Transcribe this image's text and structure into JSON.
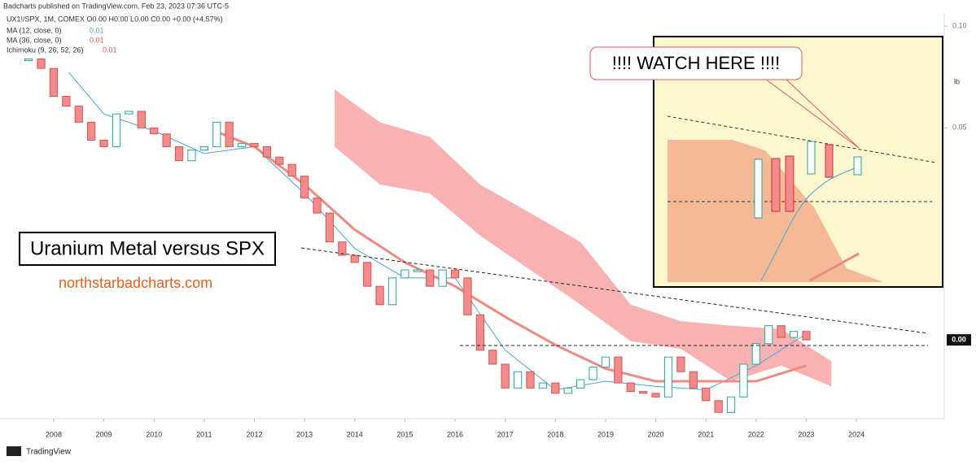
{
  "header": "Badcharts published on TradingView.com, Feb 23, 2023 07:36 UTC-5",
  "symbol_line": "UX1!/SPX, 1M, COMEX O0.00 H0.00 L0.00 C0.00 +0.00 (+4.57%)",
  "footer": "TradingView",
  "chart_data": {
    "type": "candlestick",
    "title": "Uranium Metal versus SPX",
    "subtitle": "northstarbadcharts.com",
    "annotation": "!!!! WATCH HERE !!!!",
    "scale_label": "lb",
    "last_label": "0.00",
    "log_scale": true,
    "x": [
      2007.5,
      2007.75,
      2008,
      2008.25,
      2008.5,
      2008.75,
      2009,
      2009.25,
      2009.5,
      2009.75,
      2010,
      2010.25,
      2010.5,
      2010.75,
      2011,
      2011.25,
      2011.5,
      2011.75,
      2012,
      2012.25,
      2012.5,
      2012.75,
      2013,
      2013.25,
      2013.5,
      2013.75,
      2014,
      2014.25,
      2014.5,
      2014.75,
      2015,
      2015.25,
      2015.5,
      2015.75,
      2016,
      2016.25,
      2016.5,
      2016.75,
      2017,
      2017.25,
      2017.5,
      2017.75,
      2018,
      2018.25,
      2018.5,
      2018.75,
      2019,
      2019.25,
      2019.5,
      2019.75,
      2020,
      2020.25,
      2020.5,
      2020.75,
      2021,
      2021.25,
      2021.5,
      2021.75,
      2022,
      2022.25,
      2022.5,
      2022.75,
      2023
    ],
    "closes": [
      0.08,
      0.075,
      0.062,
      0.058,
      0.052,
      0.046,
      0.044,
      0.055,
      0.056,
      0.05,
      0.048,
      0.044,
      0.04,
      0.043,
      0.044,
      0.052,
      0.044,
      0.045,
      0.044,
      0.041,
      0.039,
      0.036,
      0.031,
      0.028,
      0.023,
      0.021,
      0.02,
      0.017,
      0.015,
      0.018,
      0.019,
      0.019,
      0.017,
      0.019,
      0.018,
      0.014,
      0.011,
      0.01,
      0.0085,
      0.0095,
      0.0085,
      0.0088,
      0.0082,
      0.0085,
      0.009,
      0.0098,
      0.0105,
      0.0088,
      0.0083,
      0.0082,
      0.008,
      0.0105,
      0.0095,
      0.0085,
      0.0078,
      0.0072,
      0.008,
      0.01,
      0.0115,
      0.013,
      0.012,
      0.0125,
      0.0118
    ],
    "up_color": "#26a69a",
    "down_color": "#f28b8b",
    "series": [
      {
        "name": "MA (12, close, 0)",
        "legend_value": "0.01",
        "color": "#4aa3df",
        "width": 1,
        "x": [
          2008.3,
          2009,
          2010,
          2011,
          2012,
          2013,
          2014,
          2015,
          2016,
          2017,
          2018,
          2019,
          2020,
          2021,
          2022,
          2023
        ],
        "values": [
          0.073,
          0.055,
          0.049,
          0.042,
          0.044,
          0.032,
          0.022,
          0.018,
          0.018,
          0.011,
          0.0084,
          0.0089,
          0.0086,
          0.0084,
          0.0099,
          0.0123
        ]
      },
      {
        "name": "MA (36, close, 0)",
        "legend_value": "0.01",
        "color": "#ef8a80",
        "width": 3,
        "x": [
          2011.2,
          2012,
          2013,
          2014,
          2015,
          2016,
          2017,
          2018,
          2019,
          2020,
          2021,
          2022,
          2023
        ],
        "values": [
          0.049,
          0.044,
          0.034,
          0.025,
          0.02,
          0.017,
          0.0138,
          0.0114,
          0.0097,
          0.0089,
          0.0089,
          0.0089,
          0.0099
        ]
      }
    ],
    "cloud": {
      "name": "Ichimoku (9, 26, 52, 26)",
      "legend_value": "0.01",
      "color": "#f7a5a5",
      "x": [
        2013.6,
        2014.5,
        2015.5,
        2016.5,
        2017.5,
        2018.5,
        2019.5,
        2020.5,
        2021.5,
        2022.5,
        2023.5
      ],
      "upper": [
        0.065,
        0.052,
        0.047,
        0.034,
        0.028,
        0.023,
        0.015,
        0.0134,
        0.013,
        0.0127,
        0.0102
      ],
      "lower": [
        0.044,
        0.034,
        0.032,
        0.024,
        0.019,
        0.015,
        0.0117,
        0.0111,
        0.0089,
        0.0099,
        0.0086
      ]
    },
    "xlim": [
      2006.93,
      2025.75
    ],
    "xticks": [
      2008,
      2009,
      2010,
      2011,
      2012,
      2013,
      2014,
      2015,
      2016,
      2017,
      2018,
      2019,
      2020,
      2021,
      2022,
      2023,
      2024
    ],
    "ylim": [
      0.0069,
      0.11
    ],
    "yticks": [
      {
        "value": 0.05,
        "label": "0.05"
      },
      {
        "value": 0.1,
        "label": "0.10"
      }
    ]
  }
}
